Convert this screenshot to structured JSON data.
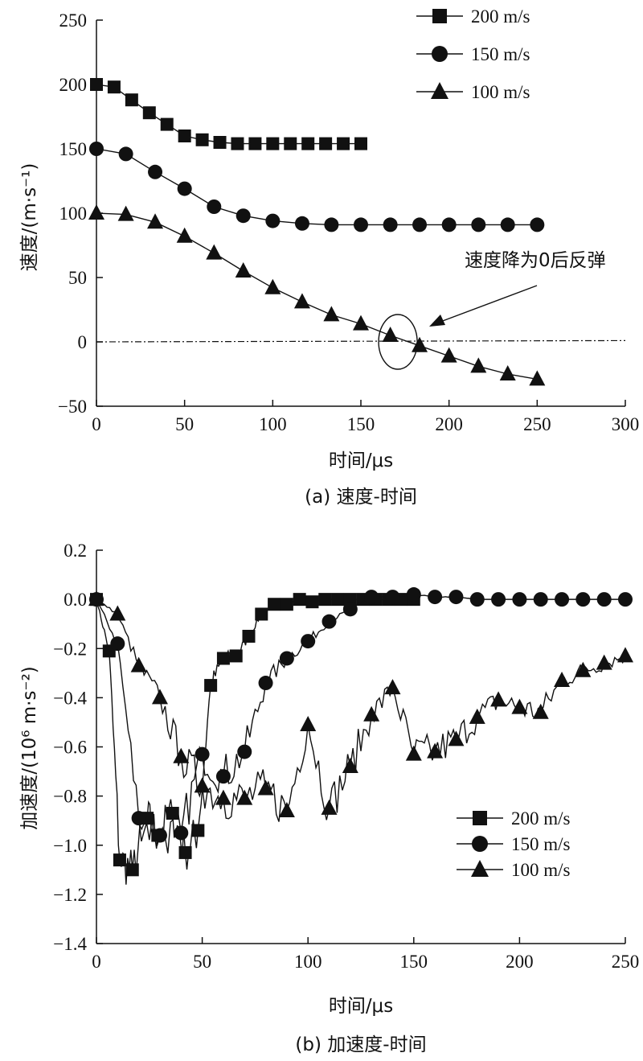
{
  "chart_data": [
    {
      "type": "line",
      "title": "",
      "caption": "(a) 速度-时间",
      "xlabel": "时间/μs",
      "ylabel": "速度/(m·s⁻¹)",
      "xlim": [
        0,
        300
      ],
      "ylim": [
        -50,
        250
      ],
      "xticks": [
        "0",
        "50",
        "100",
        "150",
        "200",
        "250",
        "300"
      ],
      "yticks": [
        "250",
        "200",
        "150",
        "100",
        "50",
        "0",
        "−50"
      ],
      "grid": false,
      "legend_position": "top-right",
      "annotation": "速度降为0后反弹",
      "zero_line": {
        "x": [
          0,
          300
        ],
        "y": [
          0,
          1
        ]
      },
      "series": [
        {
          "name": "200 m/s",
          "marker": "square",
          "x": [
            0,
            10,
            20,
            30,
            40,
            50,
            60,
            70,
            80,
            90,
            100,
            110,
            120,
            130,
            140,
            150
          ],
          "y": [
            200,
            198,
            188,
            178,
            169,
            160,
            157,
            155,
            154,
            154,
            154,
            154,
            154,
            154,
            154,
            154
          ]
        },
        {
          "name": "150 m/s",
          "marker": "circle",
          "x": [
            0,
            16.7,
            33.3,
            50,
            66.7,
            83.3,
            100,
            116.7,
            133.3,
            150,
            166.7,
            183.3,
            200,
            216.7,
            233.3,
            250
          ],
          "y": [
            150,
            146,
            132,
            119,
            105,
            98,
            94,
            92,
            91,
            91,
            91,
            91,
            91,
            91,
            91,
            91
          ]
        },
        {
          "name": "100 m/s",
          "marker": "triangle",
          "x": [
            0,
            16.7,
            33.3,
            50,
            66.7,
            83.3,
            100,
            116.7,
            133.3,
            150,
            166.7,
            183.3,
            200,
            216.7,
            233.3,
            250
          ],
          "y": [
            100,
            99,
            93,
            82,
            69,
            55,
            42,
            31,
            21,
            14,
            5,
            -3,
            -11,
            -19,
            -25,
            -29
          ]
        }
      ]
    },
    {
      "type": "line",
      "title": "",
      "caption": "(b) 加速度-时间",
      "xlabel": "时间/μs",
      "ylabel": "加速度/(10⁶ m·s⁻²)",
      "xlim": [
        0,
        250
      ],
      "ylim": [
        -1.4,
        0.2
      ],
      "xticks": [
        "0",
        "50",
        "100",
        "150",
        "200",
        "250"
      ],
      "yticks": [
        "0.2",
        "0.0",
        "−0.2",
        "−0.4",
        "−0.6",
        "−0.8",
        "−1.0",
        "−1.2",
        "−1.4"
      ],
      "grid": false,
      "legend_position": "center-right",
      "series": [
        {
          "name": "200 m/s",
          "marker": "square",
          "x": [
            0,
            6,
            11,
            17,
            24,
            29,
            36,
            42,
            48,
            54,
            60,
            66,
            72,
            78,
            84,
            90,
            96,
            102,
            108,
            114,
            120,
            126,
            132,
            138,
            144,
            150
          ],
          "y": [
            0,
            -0.21,
            -1.06,
            -1.1,
            -0.89,
            -0.96,
            -0.87,
            -1.03,
            -0.94,
            -0.35,
            -0.24,
            -0.23,
            -0.15,
            -0.06,
            -0.02,
            -0.02,
            0,
            -0.01,
            0,
            0,
            0,
            0,
            0,
            0,
            0,
            0
          ]
        },
        {
          "name": "150 m/s",
          "marker": "circle",
          "x": [
            0,
            10,
            20,
            30,
            40,
            50,
            60,
            70,
            80,
            90,
            100,
            110,
            120,
            130,
            140,
            150,
            160,
            170,
            180,
            190,
            200,
            210,
            220,
            230,
            240,
            250
          ],
          "y": [
            0,
            -0.18,
            -0.89,
            -0.96,
            -0.95,
            -0.63,
            -0.72,
            -0.62,
            -0.34,
            -0.24,
            -0.17,
            -0.09,
            -0.04,
            0.01,
            0.01,
            0.02,
            0.01,
            0.01,
            0,
            0,
            0,
            0,
            0,
            0,
            0,
            0
          ]
        },
        {
          "name": "100 m/s",
          "marker": "triangle",
          "x": [
            0,
            10,
            20,
            30,
            40,
            50,
            60,
            70,
            80,
            90,
            100,
            110,
            120,
            130,
            140,
            150,
            160,
            170,
            180,
            190,
            200,
            210,
            220,
            230,
            240,
            250
          ],
          "y": [
            0,
            -0.06,
            -0.27,
            -0.4,
            -0.64,
            -0.76,
            -0.81,
            -0.81,
            -0.77,
            -0.86,
            -0.51,
            -0.85,
            -0.68,
            -0.47,
            -0.36,
            -0.63,
            -0.62,
            -0.57,
            -0.48,
            -0.41,
            -0.44,
            -0.46,
            -0.33,
            -0.29,
            -0.26,
            -0.23
          ]
        }
      ]
    }
  ]
}
